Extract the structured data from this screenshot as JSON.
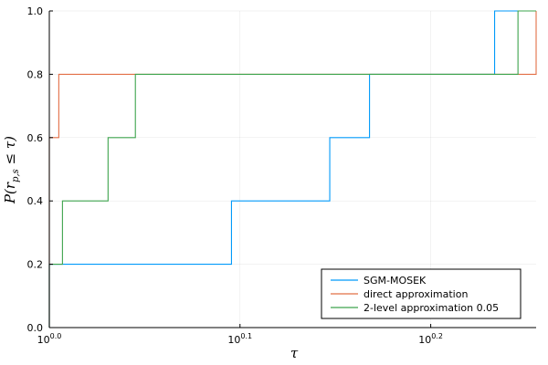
{
  "chart_data": {
    "type": "line",
    "step": "post",
    "xscale": "log10",
    "xlabel": "τ",
    "ylabel": "P(r_{p,s} ≤ τ)",
    "xlim": [
      1.0,
      1.8
    ],
    "ylim": [
      0.0,
      1.0
    ],
    "grid": true,
    "legend_position": "bottom-right",
    "xticks": [
      {
        "value": 1.0,
        "base": "10",
        "exp": "0.0"
      },
      {
        "value": 1.2589,
        "base": "10",
        "exp": "0.1"
      },
      {
        "value": 1.5849,
        "base": "10",
        "exp": "0.2"
      }
    ],
    "yticks": [
      "0.0",
      "0.2",
      "0.4",
      "0.6",
      "0.8",
      "1.0"
    ],
    "series": [
      {
        "name": "SGM-MOSEK",
        "color": "#009AFA",
        "x": [
          1.0,
          1.0,
          1.246,
          1.403,
          1.472,
          1.712,
          1.8
        ],
        "y": [
          0.0,
          0.2,
          0.4,
          0.6,
          0.8,
          1.0,
          1.0
        ]
      },
      {
        "name": "direct approximation",
        "color": "#E26F46",
        "x": [
          1.0,
          1.0,
          1.0115,
          1.8
        ],
        "y": [
          0.0,
          0.6,
          0.8,
          1.0
        ]
      },
      {
        "name": "2-level approximation 0.05",
        "color": "#3DA44D",
        "x": [
          1.0,
          1.0,
          1.016,
          1.0735,
          1.1095,
          1.761,
          1.8
        ],
        "y": [
          0.0,
          0.2,
          0.4,
          0.6,
          0.8,
          1.0,
          1.0
        ]
      }
    ]
  }
}
